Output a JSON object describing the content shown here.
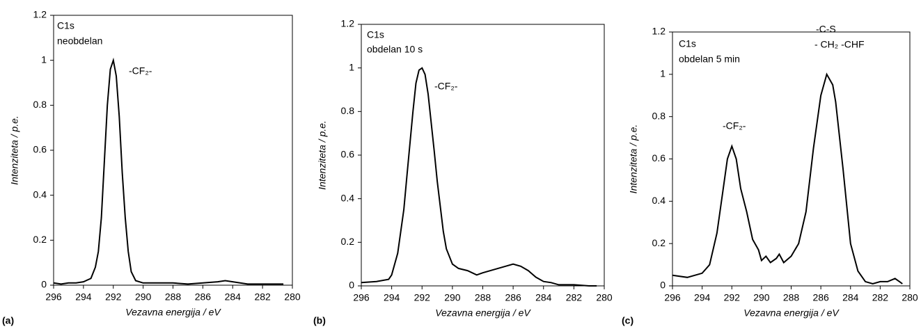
{
  "chart_data": [
    {
      "type": "line",
      "panel_label": "(a)",
      "annotations": [
        "C1s",
        "neobdelan",
        "-CF₂-"
      ],
      "xlabel": "Vezavna energija / eV",
      "ylabel": "Intenziteta / p.e.",
      "xlim": [
        296,
        280
      ],
      "xticks": [
        296,
        294,
        292,
        290,
        288,
        286,
        284,
        282,
        280
      ],
      "ylim": [
        0,
        1.2
      ],
      "yticks": [
        0,
        0.2,
        0.4,
        0.6,
        0.8,
        1,
        1.2
      ],
      "x": [
        296,
        295.5,
        295,
        294.5,
        294,
        293.5,
        293.2,
        293,
        292.8,
        292.6,
        292.4,
        292.2,
        292,
        291.8,
        291.6,
        291.4,
        291.2,
        291,
        290.8,
        290.5,
        290,
        289,
        288,
        287,
        286,
        285,
        284.5,
        284,
        283,
        282,
        281,
        280.6
      ],
      "series": [
        {
          "color": "#000000",
          "values": [
            0.01,
            0.005,
            0.01,
            0.01,
            0.015,
            0.03,
            0.08,
            0.15,
            0.3,
            0.55,
            0.8,
            0.96,
            1,
            0.93,
            0.75,
            0.5,
            0.3,
            0.15,
            0.06,
            0.02,
            0.01,
            0.01,
            0.01,
            0.005,
            0.01,
            0.015,
            0.02,
            0.015,
            0.005,
            0.005,
            0.005,
            0.005
          ]
        }
      ]
    },
    {
      "type": "line",
      "panel_label": "(b)",
      "annotations": [
        "C1s",
        "obdelan 10 s",
        "-CF₂-"
      ],
      "xlabel": "Vezavna energija / eV",
      "ylabel": "Intenziteta / p.e.",
      "xlim": [
        296,
        280
      ],
      "xticks": [
        296,
        294,
        292,
        290,
        288,
        286,
        284,
        282,
        280
      ],
      "ylim": [
        0,
        1.2
      ],
      "yticks": [
        0,
        0.2,
        0.4,
        0.6,
        0.8,
        1,
        1.2
      ],
      "x": [
        296,
        295,
        294.2,
        294,
        293.6,
        293.2,
        293,
        292.6,
        292.4,
        292.2,
        292,
        291.8,
        291.6,
        291.2,
        291,
        290.6,
        290.4,
        290,
        289.6,
        289,
        288.4,
        288,
        287,
        286.5,
        286,
        285.5,
        285,
        284.5,
        284,
        283.5,
        283,
        282,
        281,
        280.5
      ],
      "series": [
        {
          "color": "#000000",
          "values": [
            0.015,
            0.02,
            0.03,
            0.05,
            0.15,
            0.35,
            0.5,
            0.8,
            0.93,
            0.99,
            1,
            0.97,
            0.88,
            0.62,
            0.48,
            0.25,
            0.17,
            0.1,
            0.08,
            0.07,
            0.05,
            0.06,
            0.08,
            0.09,
            0.1,
            0.09,
            0.07,
            0.04,
            0.02,
            0.015,
            0.005,
            0.005,
            0,
            0
          ]
        }
      ]
    },
    {
      "type": "line",
      "panel_label": "(c)",
      "annotations": [
        "C1s",
        "obdelan 5 min",
        "-CF₂-",
        "-C-S",
        "- CH₂ -CHF"
      ],
      "xlabel": "Vezavna energija / eV",
      "ylabel": "Intenziteta / p.e.",
      "xlim": [
        296,
        280
      ],
      "xticks": [
        296,
        294,
        292,
        290,
        288,
        286,
        284,
        282,
        280
      ],
      "ylim": [
        0,
        1.2
      ],
      "yticks": [
        0,
        0.2,
        0.4,
        0.6,
        0.8,
        1,
        1.2
      ],
      "x": [
        296,
        295,
        294.5,
        294,
        293.5,
        293,
        292.6,
        292.3,
        292,
        291.7,
        291.4,
        291,
        290.6,
        290.2,
        290,
        289.7,
        289.4,
        289,
        288.8,
        288.5,
        288,
        287.5,
        287,
        286.5,
        286,
        285.6,
        285.2,
        285,
        284.5,
        284,
        283.5,
        283,
        282.5,
        282,
        281.5,
        281,
        280.7,
        280.5
      ],
      "series": [
        {
          "color": "#000000",
          "values": [
            0.05,
            0.04,
            0.05,
            0.06,
            0.1,
            0.25,
            0.45,
            0.6,
            0.66,
            0.6,
            0.46,
            0.35,
            0.22,
            0.17,
            0.12,
            0.14,
            0.11,
            0.13,
            0.15,
            0.11,
            0.14,
            0.2,
            0.35,
            0.65,
            0.9,
            1,
            0.95,
            0.87,
            0.55,
            0.2,
            0.07,
            0.02,
            0.01,
            0.02,
            0.02,
            0.035,
            0.02,
            0.01
          ]
        }
      ]
    }
  ]
}
